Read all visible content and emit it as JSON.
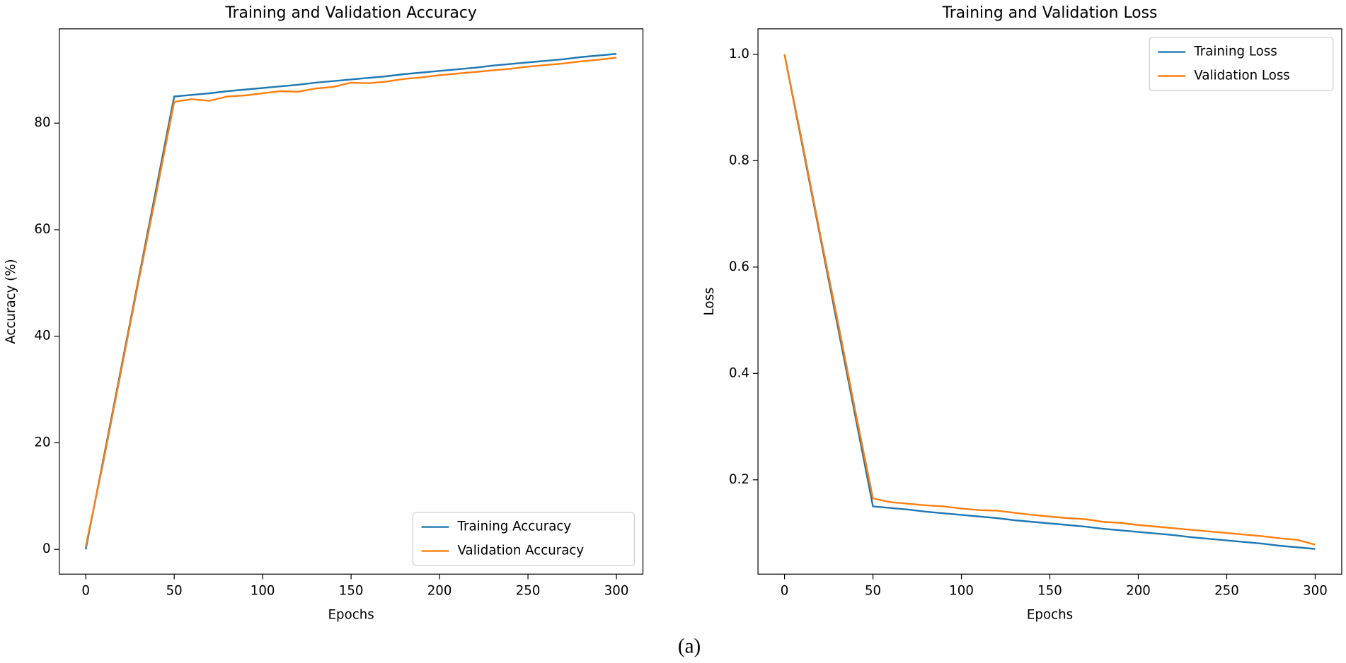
{
  "chart_data": [
    {
      "type": "line",
      "title": "Training and Validation Accuracy",
      "x_label": "Epochs",
      "y_label": "Accuracy (%)",
      "x": [
        0,
        10,
        20,
        30,
        40,
        50,
        60,
        70,
        80,
        90,
        100,
        110,
        120,
        130,
        140,
        150,
        160,
        170,
        180,
        190,
        200,
        210,
        220,
        230,
        240,
        250,
        260,
        270,
        280,
        290,
        300
      ],
      "series": [
        {
          "name": "Training Accuracy",
          "color": "#1f77b4",
          "values": [
            0,
            17,
            34,
            51,
            68,
            85,
            85.3,
            85.6,
            86.0,
            86.3,
            86.6,
            86.9,
            87.2,
            87.6,
            87.9,
            88.2,
            88.5,
            88.8,
            89.2,
            89.5,
            89.8,
            90.1,
            90.4,
            90.8,
            91.1,
            91.4,
            91.7,
            92.0,
            92.4,
            92.7,
            93.0
          ]
        },
        {
          "name": "Validation Accuracy",
          "color": "#ff7f0e",
          "values": [
            0.5,
            16.5,
            33.5,
            50.5,
            67,
            84,
            84.5,
            84.2,
            85.0,
            85.2,
            85.6,
            86.0,
            85.9,
            86.5,
            86.8,
            87.6,
            87.5,
            87.8,
            88.3,
            88.6,
            89.0,
            89.3,
            89.6,
            89.9,
            90.2,
            90.6,
            90.9,
            91.2,
            91.6,
            91.9,
            92.3
          ]
        }
      ],
      "xlim": [
        -15,
        315
      ],
      "xticks": [
        0,
        50,
        100,
        150,
        200,
        250,
        300
      ],
      "ylim": [
        -4.65,
        97.7
      ],
      "yticks": [
        0,
        20,
        40,
        60,
        80
      ],
      "legend": "lower right"
    },
    {
      "type": "line",
      "title": "Training and Validation Loss",
      "x_label": "Epochs",
      "y_label": "Loss",
      "x": [
        0,
        10,
        20,
        30,
        40,
        50,
        60,
        70,
        80,
        90,
        100,
        110,
        120,
        130,
        140,
        150,
        160,
        170,
        180,
        190,
        200,
        210,
        220,
        230,
        240,
        250,
        260,
        270,
        280,
        290,
        300
      ],
      "series": [
        {
          "name": "Training Loss",
          "color": "#1f77b4",
          "values": [
            1.0,
            0.83,
            0.66,
            0.49,
            0.32,
            0.15,
            0.147,
            0.144,
            0.14,
            0.137,
            0.134,
            0.131,
            0.128,
            0.124,
            0.121,
            0.118,
            0.115,
            0.112,
            0.108,
            0.105,
            0.102,
            0.099,
            0.096,
            0.092,
            0.089,
            0.086,
            0.083,
            0.08,
            0.076,
            0.073,
            0.07
          ]
        },
        {
          "name": "Validation Loss",
          "color": "#ff7f0e",
          "values": [
            1.0,
            0.835,
            0.665,
            0.5,
            0.33,
            0.165,
            0.158,
            0.155,
            0.152,
            0.15,
            0.146,
            0.143,
            0.142,
            0.138,
            0.134,
            0.131,
            0.128,
            0.126,
            0.121,
            0.119,
            0.115,
            0.112,
            0.109,
            0.106,
            0.103,
            0.1,
            0.097,
            0.094,
            0.09,
            0.087,
            0.078
          ]
        }
      ],
      "xlim": [
        -15,
        315
      ],
      "xticks": [
        0,
        50,
        100,
        150,
        200,
        250,
        300
      ],
      "ylim": [
        0.0226,
        1.048
      ],
      "yticks": [
        0.2,
        0.4,
        0.6,
        0.8,
        {
          "value": 1.0,
          "label": "1.0"
        }
      ],
      "legend": "upper right"
    }
  ],
  "caption": "(a)"
}
